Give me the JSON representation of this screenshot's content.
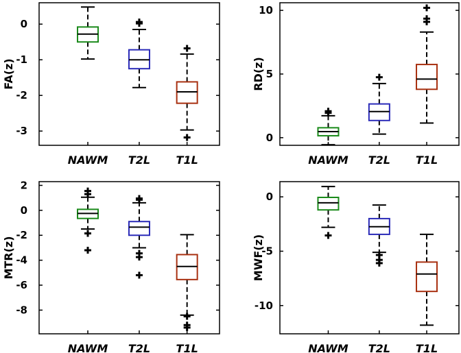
{
  "chart_data": [
    {
      "type": "boxplot",
      "ylabel": "FA(z)",
      "categories": [
        "NAWM",
        "T2L",
        "T1L"
      ],
      "ylim": [
        -3.4,
        0.6
      ],
      "yticks": [
        "0",
        "-1",
        "-2",
        "-3"
      ],
      "ytick_values": [
        0,
        -1,
        -2,
        -3
      ],
      "boxes": [
        {
          "category": "NAWM",
          "color": "#1a8a1a",
          "q1": -0.5,
          "median": -0.28,
          "q3": -0.08,
          "whisker_low": -0.98,
          "whisker_high": 0.48,
          "outliers": []
        },
        {
          "category": "T2L",
          "color": "#2a2ab8",
          "q1": -1.25,
          "median": -1.0,
          "q3": -0.72,
          "whisker_low": -1.78,
          "whisker_high": -0.15,
          "outliers": [
            0.02,
            0.06
          ]
        },
        {
          "category": "T1L",
          "color": "#a83010",
          "q1": -2.22,
          "median": -1.9,
          "q3": -1.62,
          "whisker_low": -2.97,
          "whisker_high": -0.84,
          "outliers": [
            -0.68,
            -3.18
          ]
        }
      ]
    },
    {
      "type": "boxplot",
      "ylabel": "RD(z)",
      "categories": [
        "NAWM",
        "T2L",
        "T1L"
      ],
      "ylim": [
        -0.6,
        10.6
      ],
      "yticks": [
        "10",
        "5",
        "0"
      ],
      "ytick_values": [
        10,
        5,
        0
      ],
      "boxes": [
        {
          "category": "NAWM",
          "color": "#1a8a1a",
          "q1": 0.15,
          "median": 0.48,
          "q3": 0.78,
          "whisker_low": -0.55,
          "whisker_high": 1.72,
          "outliers": [
            1.95,
            2.08
          ]
        },
        {
          "category": "T2L",
          "color": "#2a2ab8",
          "q1": 1.35,
          "median": 2.05,
          "q3": 2.65,
          "whisker_low": 0.28,
          "whisker_high": 4.25,
          "outliers": [
            4.75
          ]
        },
        {
          "category": "T1L",
          "color": "#a83010",
          "q1": 3.8,
          "median": 4.6,
          "q3": 5.75,
          "whisker_low": 1.15,
          "whisker_high": 8.3,
          "outliers": [
            9.1,
            9.35,
            10.2
          ]
        }
      ]
    },
    {
      "type": "boxplot",
      "ylabel": "MTR(z)",
      "categories": [
        "NAWM",
        "T2L",
        "T1L"
      ],
      "ylim": [
        -9.9,
        2.3
      ],
      "yticks": [
        "2",
        "0",
        "-2",
        "-4",
        "-6",
        "-8"
      ],
      "ytick_values": [
        2,
        0,
        -2,
        -4,
        -6,
        -8
      ],
      "boxes": [
        {
          "category": "NAWM",
          "color": "#1a8a1a",
          "q1": -0.65,
          "median": -0.25,
          "q3": 0.08,
          "whisker_low": -1.5,
          "whisker_high": 1.05,
          "outliers": [
            1.3,
            1.55,
            -1.85,
            -3.2
          ]
        },
        {
          "category": "T2L",
          "color": "#2a2ab8",
          "q1": -2.0,
          "median": -1.35,
          "q3": -0.9,
          "whisker_low": -3.0,
          "whisker_high": 0.6,
          "outliers": [
            0.85,
            0.95,
            -3.45,
            -3.75,
            -5.2
          ]
        },
        {
          "category": "T1L",
          "color": "#a83010",
          "q1": -5.55,
          "median": -4.5,
          "q3": -3.55,
          "whisker_low": -8.4,
          "whisker_high": -1.95,
          "outliers": [
            -8.5,
            -9.2,
            -9.4
          ]
        }
      ]
    },
    {
      "type": "boxplot",
      "ylabel": "MWF(z)",
      "categories": [
        "NAWM",
        "T2L",
        "T1L"
      ],
      "ylim": [
        -12.6,
        1.4
      ],
      "yticks": [
        "0",
        "-5",
        "-10"
      ],
      "ytick_values": [
        0,
        -5,
        -10
      ],
      "boxes": [
        {
          "category": "NAWM",
          "color": "#1a8a1a",
          "q1": -1.2,
          "median": -0.55,
          "q3": -0.05,
          "whisker_low": -2.8,
          "whisker_high": 0.95,
          "outliers": [
            -3.55
          ]
        },
        {
          "category": "T2L",
          "color": "#2a2ab8",
          "q1": -3.45,
          "median": -2.75,
          "q3": -2.0,
          "whisker_low": -5.1,
          "whisker_high": -0.75,
          "outliers": [
            -5.35,
            -5.8,
            -6.1
          ]
        },
        {
          "category": "T1L",
          "color": "#a83010",
          "q1": -8.7,
          "median": -7.1,
          "q3": -6.0,
          "whisker_low": -11.8,
          "whisker_high": -3.45,
          "outliers": []
        }
      ]
    }
  ]
}
